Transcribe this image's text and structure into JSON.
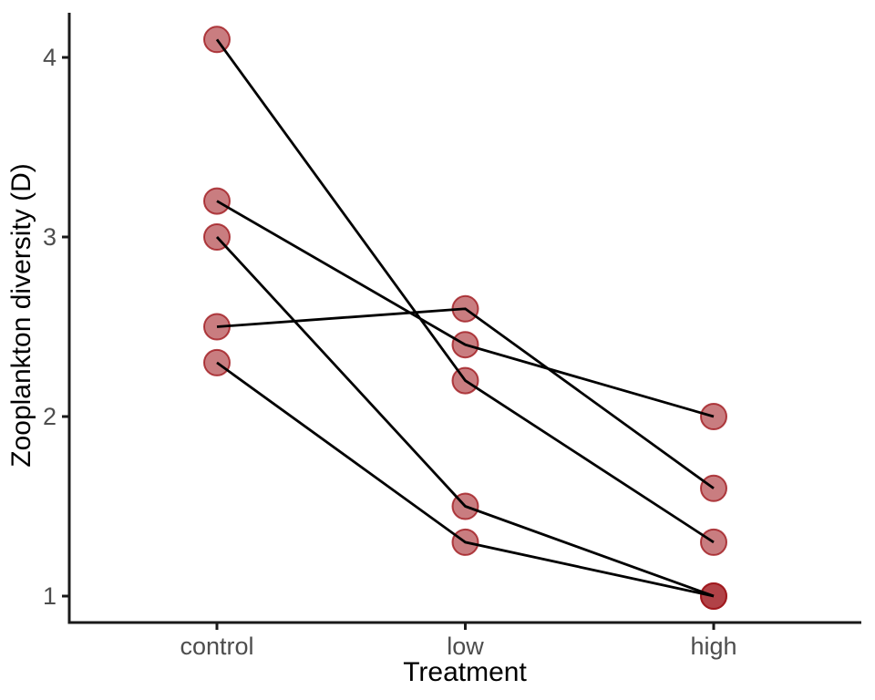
{
  "chart_data": {
    "type": "line",
    "subtype": "paired-slope-chart",
    "title": "",
    "xlabel": "Treatment",
    "ylabel": "Zooplankton diversity (D)",
    "categories": [
      "control",
      "low",
      "high"
    ],
    "yticks": [
      1,
      2,
      3,
      4
    ],
    "ylim": [
      0.85,
      4.25
    ],
    "grid": false,
    "legend": "none",
    "series": [
      {
        "values": [
          4.1,
          2.2,
          1.3
        ]
      },
      {
        "values": [
          3.2,
          2.4,
          2.0
        ]
      },
      {
        "values": [
          3.0,
          1.5,
          1.0
        ]
      },
      {
        "values": [
          2.5,
          2.6,
          1.6
        ]
      },
      {
        "values": [
          2.3,
          1.3,
          1.0
        ]
      }
    ],
    "colors": {
      "background": "#ffffff",
      "point_fill": "#9d1318",
      "point_fill_opacity": 0.55,
      "point_stroke": "#9d1318",
      "point_stroke_opacity": 0.78,
      "connector_line": "#000000",
      "axis_line": "#1a1a1a",
      "tick_label": "#4d4d4d",
      "axis_title": "#000000"
    }
  }
}
